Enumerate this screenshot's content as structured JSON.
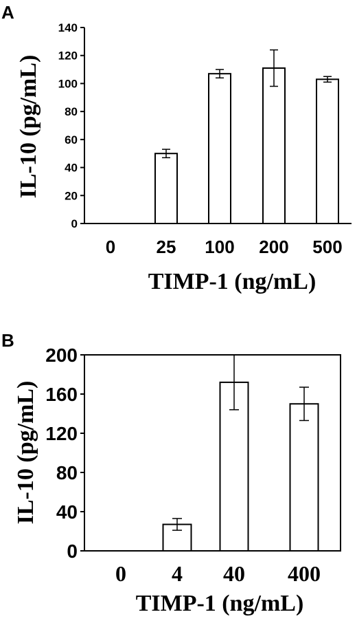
{
  "chart_data": [
    {
      "panel": "A",
      "type": "bar",
      "title": "",
      "xlabel": "TIMP-1 (ng/mL)",
      "ylabel": "IL-10 (pg/mL)",
      "categories": [
        "0",
        "25",
        "100",
        "200",
        "500"
      ],
      "values": [
        0,
        50,
        107,
        111,
        103
      ],
      "errors": [
        0,
        3,
        3,
        13,
        2
      ],
      "ylim": [
        0,
        140
      ],
      "yticks": [
        "0",
        "20",
        "40",
        "60",
        "80",
        "100",
        "120",
        "140"
      ],
      "grid": false,
      "bar_color": "#ffffff"
    },
    {
      "panel": "B",
      "type": "bar",
      "title": "",
      "xlabel": "TIMP-1 (ng/mL)",
      "ylabel": "IL-10 (pg/mL)",
      "categories": [
        "0",
        "4",
        "40",
        "400"
      ],
      "values": [
        0,
        27,
        172,
        150
      ],
      "errors": [
        0,
        6,
        28,
        17
      ],
      "ylim": [
        0,
        200
      ],
      "yticks": [
        "0",
        "40",
        "80",
        "120",
        "160",
        "200"
      ],
      "grid": false,
      "bar_color": "#ffffff"
    }
  ]
}
